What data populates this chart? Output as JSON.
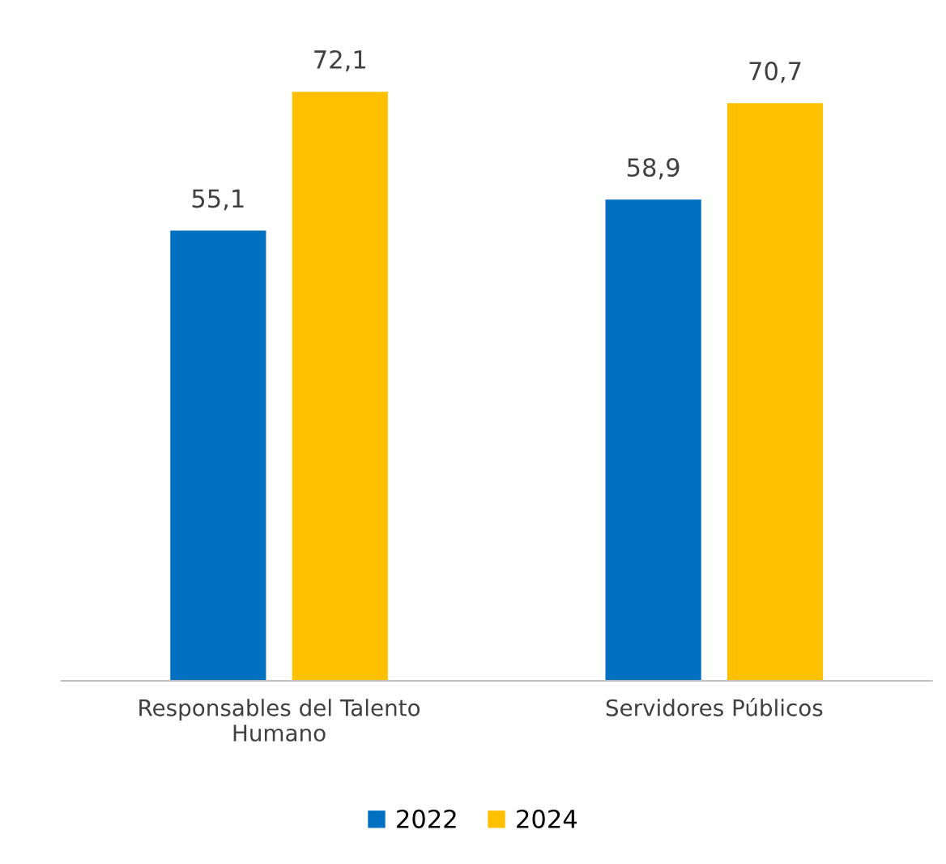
{
  "chart_data": {
    "type": "bar",
    "categories": [
      "Responsables del Talento\nHumano",
      "Servidores Públicos"
    ],
    "series": [
      {
        "name": "2022",
        "color": "#0070c0",
        "values": [
          55.1,
          58.9
        ],
        "value_labels": [
          "55,1",
          "58,9"
        ]
      },
      {
        "name": "2024",
        "color": "#ffc000",
        "values": [
          72.1,
          70.7
        ],
        "value_labels": [
          "72,1",
          "70,7"
        ]
      }
    ],
    "legend": "bottom",
    "grid": false
  }
}
